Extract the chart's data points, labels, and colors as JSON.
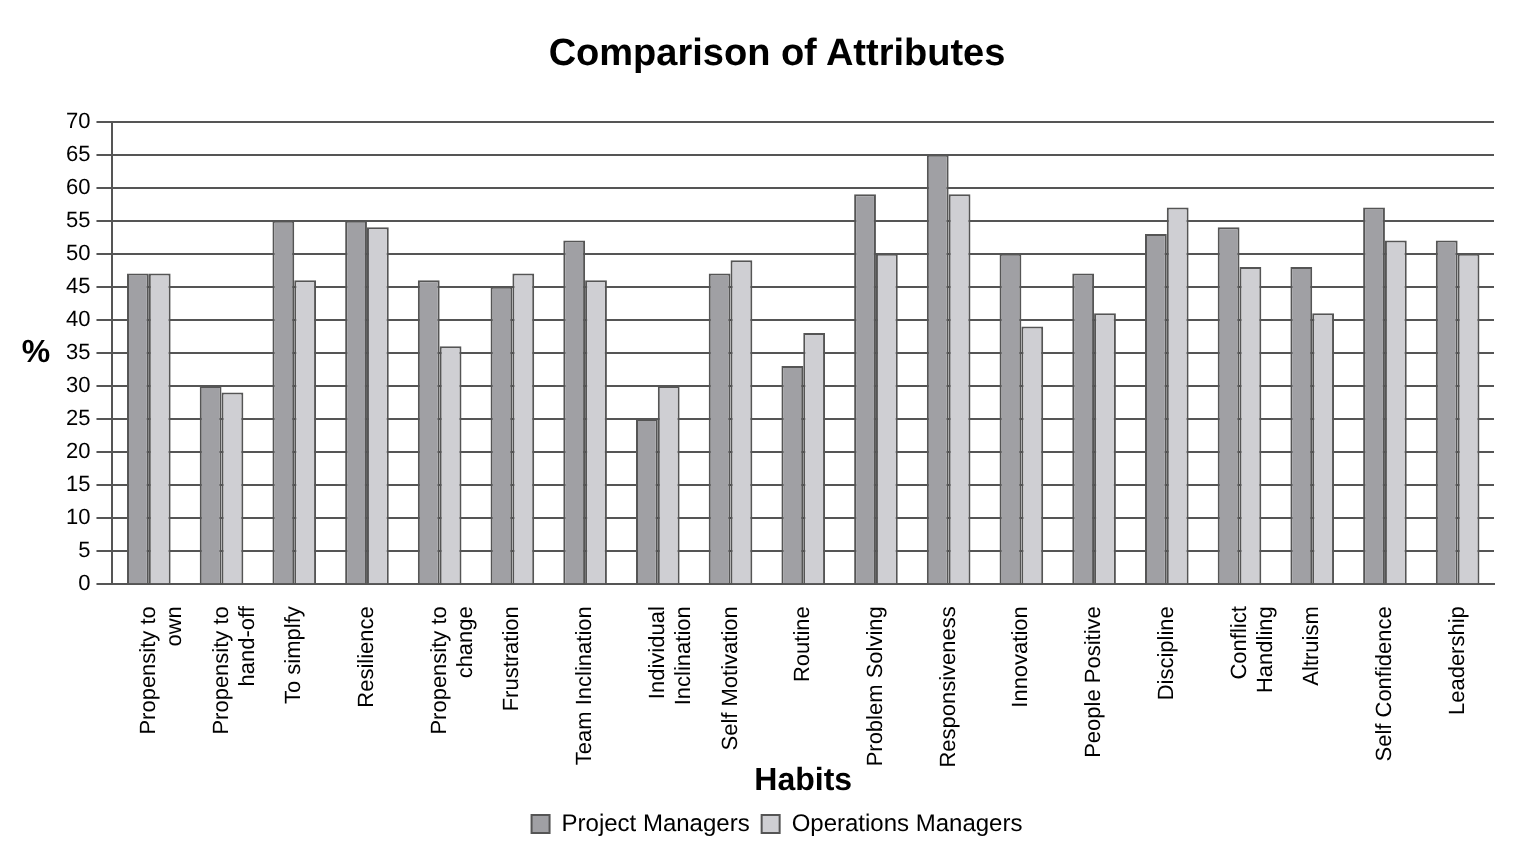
{
  "chart_data": {
    "type": "bar",
    "title": "Comparison of Attributes",
    "xlabel": "Habits",
    "ylabel": "%",
    "categories": [
      "Propensity to own",
      "Propensity to hand-off",
      "To simplfy",
      "Resilience",
      "Propensity to change",
      "Frustration",
      "Team Inclination",
      "Individual Inclination",
      "Self Motivation",
      "Routine",
      "Problem Solving",
      "Responsiveness",
      "Innovation",
      "People Positive",
      "Discipline",
      "Conflict Handling",
      "Altruism",
      "Self Confidence",
      "Leadership"
    ],
    "series": [
      {
        "name": "Project Managers",
        "color": "#a0a0a4",
        "values": [
          47,
          30,
          55,
          55,
          46,
          45,
          52,
          25,
          47,
          33,
          59,
          65,
          50,
          47,
          53,
          54,
          48,
          57,
          52
        ]
      },
      {
        "name": "Operations Managers",
        "color": "#cfcfd3",
        "values": [
          47,
          29,
          46,
          54,
          36,
          47,
          46,
          30,
          49,
          38,
          50,
          59,
          39,
          41,
          57,
          48,
          41,
          52,
          50
        ]
      }
    ],
    "ylim": [
      0,
      70
    ],
    "yticks": [
      0,
      5,
      10,
      15,
      20,
      25,
      30,
      35,
      40,
      45,
      50,
      55,
      60,
      65,
      70
    ],
    "grid": "y",
    "legend": "bottom"
  }
}
